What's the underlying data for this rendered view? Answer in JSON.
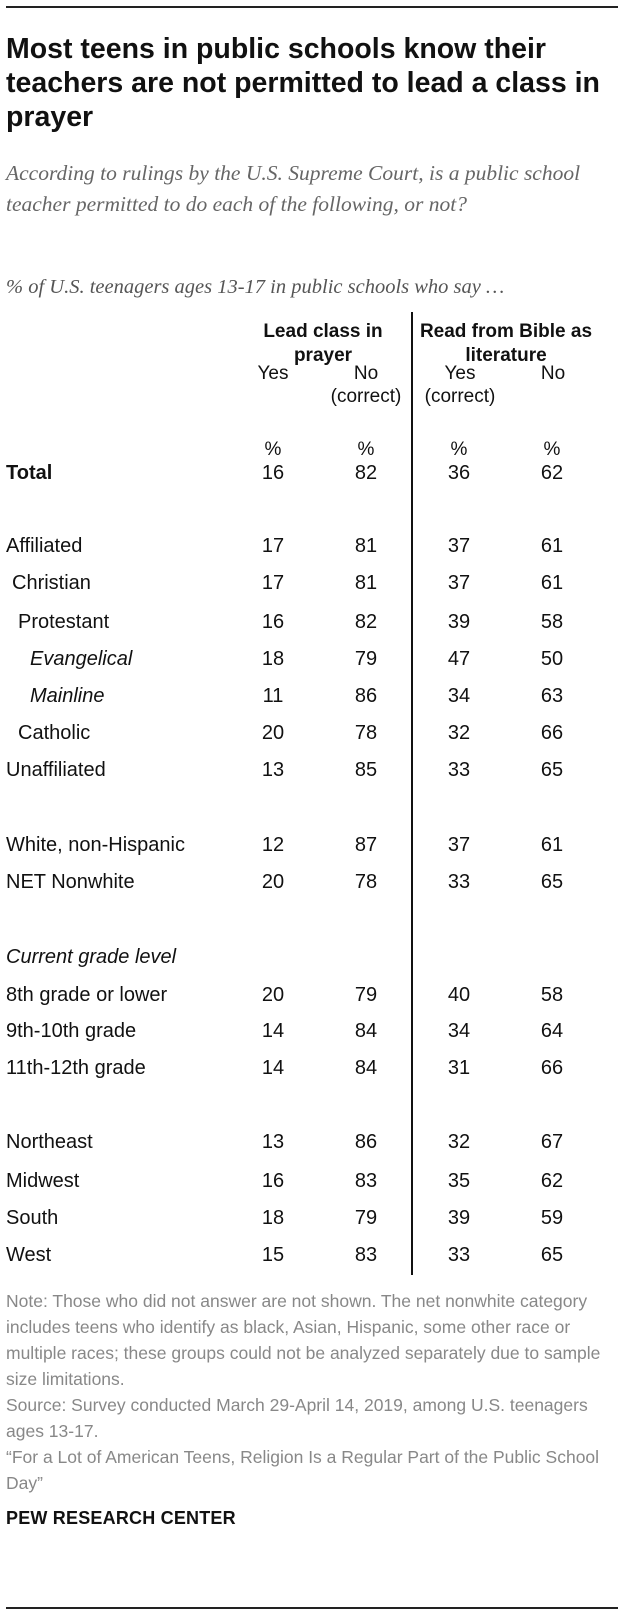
{
  "title": "Most teens in public schools know their teachers are not permitted to lead a class in prayer",
  "subtitle": "According to rulings by the U.S. Supreme Court, is a public school teacher permitted to do each of the following, or not?",
  "unit_line": "% of U.S. teenagers ages 13-17 in public schools who say …",
  "column_groups": [
    {
      "label": "Lead class in prayer"
    },
    {
      "label": "Read from Bible as literature"
    }
  ],
  "columns": [
    {
      "line1": "",
      "line2": "Yes",
      "unit": "%"
    },
    {
      "line1": "No",
      "line2": "(correct)",
      "unit": "%"
    },
    {
      "line1": "Yes",
      "line2": "(correct)",
      "unit": "%"
    },
    {
      "line1": "",
      "line2": "No",
      "unit": "%"
    }
  ],
  "section_label": "Current grade level",
  "chart_data": {
    "type": "table",
    "column_groups": [
      "Lead class in prayer",
      "Read from Bible as literature"
    ],
    "columns": [
      "Yes",
      "No (correct)",
      "Yes (correct)",
      "No"
    ],
    "rows": [
      {
        "label": "Total",
        "values": [
          16,
          82,
          36,
          62
        ]
      },
      {
        "label": "Affiliated",
        "values": [
          17,
          81,
          37,
          61
        ]
      },
      {
        "label": "Christian",
        "values": [
          17,
          81,
          37,
          61
        ]
      },
      {
        "label": "Protestant",
        "values": [
          16,
          82,
          39,
          58
        ]
      },
      {
        "label": "Evangelical",
        "values": [
          18,
          79,
          47,
          50
        ]
      },
      {
        "label": "Mainline",
        "values": [
          11,
          86,
          34,
          63
        ]
      },
      {
        "label": "Catholic",
        "values": [
          20,
          78,
          32,
          66
        ]
      },
      {
        "label": "Unaffiliated",
        "values": [
          13,
          85,
          33,
          65
        ]
      },
      {
        "label": "White, non-Hispanic",
        "values": [
          12,
          87,
          37,
          61
        ]
      },
      {
        "label": "NET Nonwhite",
        "values": [
          20,
          78,
          33,
          65
        ]
      },
      {
        "label": "8th grade or lower",
        "values": [
          20,
          79,
          40,
          58
        ]
      },
      {
        "label": "9th-10th grade",
        "values": [
          14,
          84,
          34,
          64
        ]
      },
      {
        "label": "11th-12th grade",
        "values": [
          14,
          84,
          31,
          66
        ]
      },
      {
        "label": "Northeast",
        "values": [
          13,
          86,
          32,
          67
        ]
      },
      {
        "label": "Midwest",
        "values": [
          16,
          83,
          35,
          62
        ]
      },
      {
        "label": "South",
        "values": [
          18,
          79,
          39,
          59
        ]
      },
      {
        "label": "West",
        "values": [
          15,
          83,
          33,
          65
        ]
      }
    ]
  },
  "notes": {
    "note": "Note: Those who did not answer are not shown. The net nonwhite category includes teens who identify as black, Asian, Hispanic, some other race or multiple races; these groups could not be analyzed separately due to sample size limitations.",
    "source": "Source: Survey conducted March 29-April 14, 2019, among U.S. teenagers ages 13-17.",
    "report": "“For a Lot of American Teens, Religion Is a Regular Part of the Public School Day”"
  },
  "organization": "PEW RESEARCH CENTER"
}
